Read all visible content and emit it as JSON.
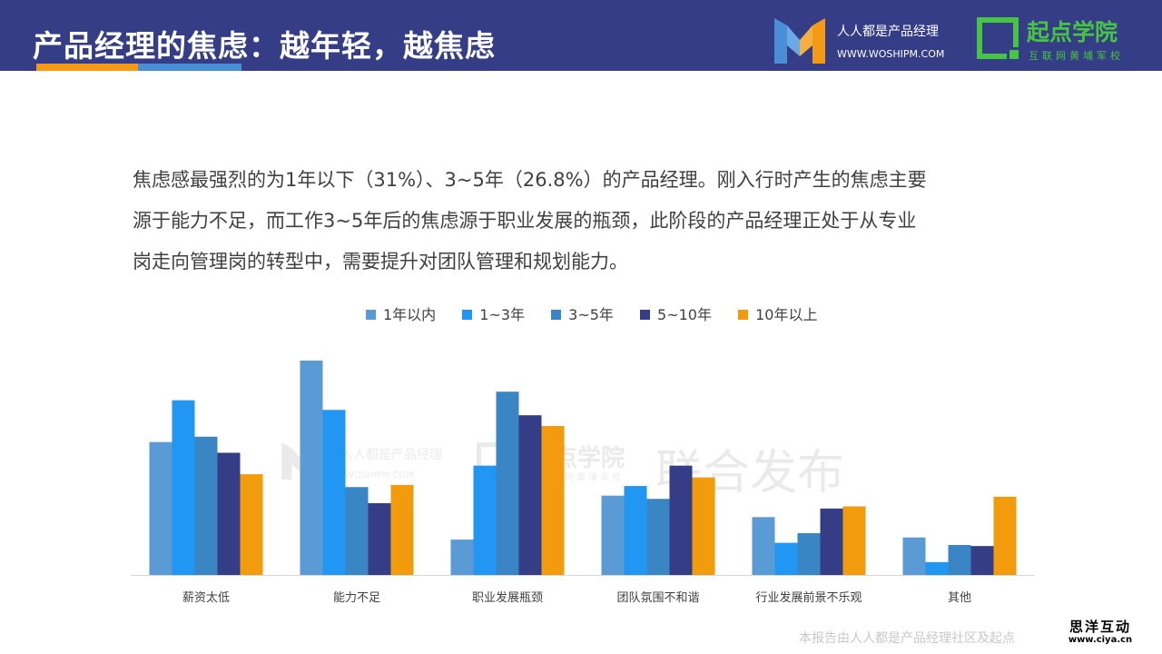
{
  "header": {
    "title": "产品经理的焦虑：越年轻，越焦虑",
    "logo1_name": "人人都是产品经理",
    "logo1_url": "WWW.WOSHIPM.COM",
    "logo2_name": "起点学院",
    "logo2_sub": "互联网黄埔军校"
  },
  "body": {
    "lines": [
      "焦虑感最强烈的为1年以下（31%）、3~5年（26.8%）的产品经理。刚入行时产生的焦虑主要",
      "源于能力不足，而工作3~5年后的焦虑源于职业发展的瓶颈，此阶段的产品经理正处于从专业",
      "岗走向管理岗的转型中，需要提升对团队管理和规划能力。"
    ]
  },
  "watermark": {
    "logo1_name": "人人都是产品经理",
    "logo1_url": "WOSHIPM.COM",
    "logo2_name": "点学院",
    "logo2_sub": "网黄埔军校",
    "joint": "联合发布"
  },
  "footer": {
    "note": "本报告由人人都是产品经理社区及起点",
    "stamp_name": "思洋互动",
    "stamp_url": "www.ciya.cn"
  },
  "colors": {
    "header_bg": "#343d85",
    "accent_orange": "#f59a16",
    "accent_blue": "#4a8fd6",
    "brand_green": "#48c444"
  },
  "chart_data": {
    "type": "bar",
    "title": "",
    "xlabel": "",
    "ylabel": "",
    "ylim": [
      0,
      100
    ],
    "grid": false,
    "legend_position": "top",
    "categories": [
      "薪资太低",
      "能力不足",
      "职业发展瓶颈",
      "团队氛围不和谐",
      "行业发展前景不乐观",
      "其他"
    ],
    "series": [
      {
        "name": "1年以内",
        "color": "#5b9bd5",
        "values": [
          62,
          100,
          16.5,
          37,
          27,
          17.5
        ]
      },
      {
        "name": "1~3年",
        "color": "#2196f3",
        "values": [
          81.5,
          77,
          51,
          41.5,
          15,
          6
        ]
      },
      {
        "name": "3~5年",
        "color": "#3a85c4",
        "values": [
          64.5,
          41,
          85.5,
          35.5,
          19.5,
          14
        ]
      },
      {
        "name": "5~10年",
        "color": "#343d85",
        "values": [
          57,
          33.5,
          74.5,
          51,
          31,
          13.5
        ]
      },
      {
        "name": "10年以上",
        "color": "#f29b0c",
        "values": [
          47,
          42,
          69.5,
          45.5,
          32,
          36.5
        ]
      }
    ]
  }
}
